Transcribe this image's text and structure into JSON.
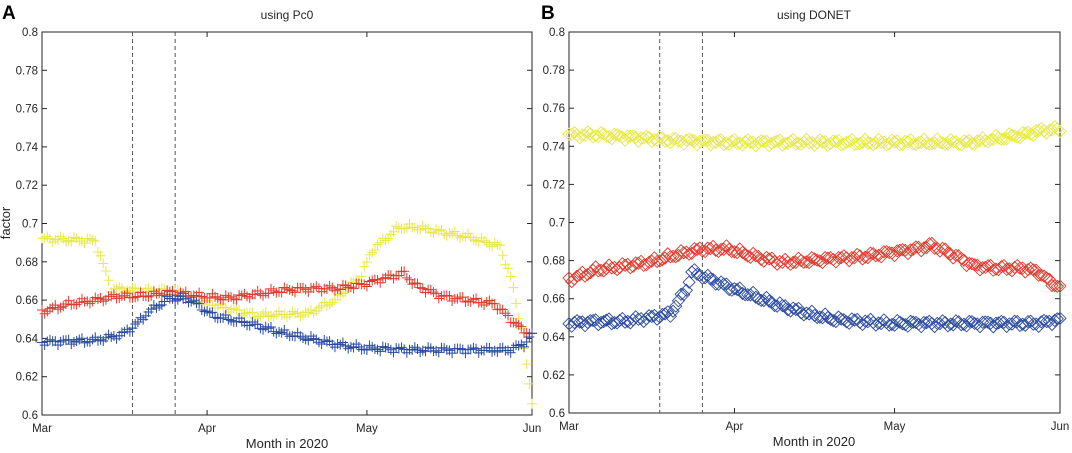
{
  "chart_data": [
    {
      "panel": "A",
      "type": "scatter",
      "marker": "plus",
      "title": "using Pc0",
      "xlabel": "Month in 2020",
      "ylabel": "factor",
      "ylim": [
        0.6,
        0.8
      ],
      "yticks": [
        "0.6",
        "0.62",
        "0.64",
        "0.66",
        "0.68",
        "0.7",
        "0.72",
        "0.74",
        "0.76",
        "0.78",
        "0.8"
      ],
      "xlim": [
        0,
        92
      ],
      "xticks": [
        {
          "day": 0,
          "label": "Mar"
        },
        {
          "day": 31,
          "label": "Apr"
        },
        {
          "day": 61,
          "label": "May"
        },
        {
          "day": 92,
          "label": "Jun"
        }
      ],
      "vlines": [
        17,
        25
      ],
      "series": [
        {
          "name": "yellow",
          "color": "#e8e84a",
          "x": [
            0,
            10,
            13,
            18,
            25,
            30,
            40,
            50,
            55,
            60,
            62,
            67,
            70,
            80,
            86,
            88,
            90,
            91,
            92
          ],
          "y": [
            0.692,
            0.691,
            0.666,
            0.665,
            0.665,
            0.659,
            0.652,
            0.653,
            0.66,
            0.673,
            0.686,
            0.698,
            0.698,
            0.693,
            0.688,
            0.672,
            0.645,
            0.625,
            0.607
          ]
        },
        {
          "name": "red",
          "color": "#e03a2e",
          "x": [
            0,
            5,
            10,
            14,
            18,
            24,
            30,
            35,
            40,
            45,
            50,
            55,
            60,
            65,
            68,
            70,
            75,
            80,
            85,
            88,
            90,
            92
          ],
          "y": [
            0.654,
            0.658,
            0.66,
            0.662,
            0.662,
            0.664,
            0.662,
            0.661,
            0.663,
            0.665,
            0.666,
            0.666,
            0.668,
            0.672,
            0.674,
            0.668,
            0.662,
            0.66,
            0.658,
            0.65,
            0.645,
            0.642
          ]
        },
        {
          "name": "blue",
          "color": "#2a4aa0",
          "x": [
            0,
            10,
            15,
            18,
            20,
            24,
            28,
            32,
            40,
            45,
            50,
            55,
            60,
            70,
            80,
            88,
            91,
            92
          ],
          "y": [
            0.638,
            0.639,
            0.642,
            0.648,
            0.654,
            0.661,
            0.66,
            0.652,
            0.647,
            0.643,
            0.64,
            0.637,
            0.635,
            0.634,
            0.634,
            0.634,
            0.638,
            0.642
          ]
        }
      ]
    },
    {
      "panel": "B",
      "type": "scatter",
      "marker": "diamond",
      "title": "using DONET",
      "xlabel": "Month in 2020",
      "ylabel": "",
      "ylim": [
        0.6,
        0.8
      ],
      "yticks": [
        "0.6",
        "0.62",
        "0.64",
        "0.66",
        "0.68",
        "0.7",
        "0.72",
        "0.74",
        "0.76",
        "0.78",
        "0.8"
      ],
      "xlim": [
        0,
        92
      ],
      "xticks": [
        {
          "day": 0,
          "label": "Mar"
        },
        {
          "day": 31,
          "label": "Apr"
        },
        {
          "day": 61,
          "label": "May"
        },
        {
          "day": 92,
          "label": "Jun"
        }
      ],
      "vlines": [
        17,
        25
      ],
      "series": [
        {
          "name": "yellow",
          "color": "#e8e84a",
          "x": [
            0,
            5,
            10,
            15,
            20,
            30,
            40,
            50,
            60,
            70,
            75,
            80,
            85,
            88,
            92
          ],
          "y": [
            0.746,
            0.746,
            0.745,
            0.744,
            0.743,
            0.742,
            0.742,
            0.742,
            0.742,
            0.742,
            0.742,
            0.744,
            0.746,
            0.748,
            0.749
          ]
        },
        {
          "name": "red",
          "color": "#e03a2e",
          "x": [
            0,
            5,
            10,
            15,
            20,
            25,
            30,
            35,
            40,
            45,
            50,
            55,
            60,
            65,
            68,
            72,
            76,
            80,
            85,
            88,
            90,
            92
          ],
          "y": [
            0.67,
            0.675,
            0.677,
            0.679,
            0.683,
            0.686,
            0.686,
            0.682,
            0.679,
            0.68,
            0.681,
            0.682,
            0.684,
            0.686,
            0.688,
            0.683,
            0.677,
            0.676,
            0.676,
            0.674,
            0.669,
            0.666
          ]
        },
        {
          "name": "blue",
          "color": "#2a4aa0",
          "x": [
            0,
            5,
            10,
            15,
            19,
            22,
            23,
            25,
            30,
            35,
            40,
            45,
            50,
            55,
            60,
            70,
            80,
            85,
            88,
            90,
            92
          ],
          "y": [
            0.647,
            0.648,
            0.648,
            0.65,
            0.652,
            0.665,
            0.674,
            0.672,
            0.666,
            0.661,
            0.656,
            0.652,
            0.649,
            0.648,
            0.647,
            0.647,
            0.647,
            0.647,
            0.647,
            0.648,
            0.649
          ]
        }
      ]
    }
  ]
}
